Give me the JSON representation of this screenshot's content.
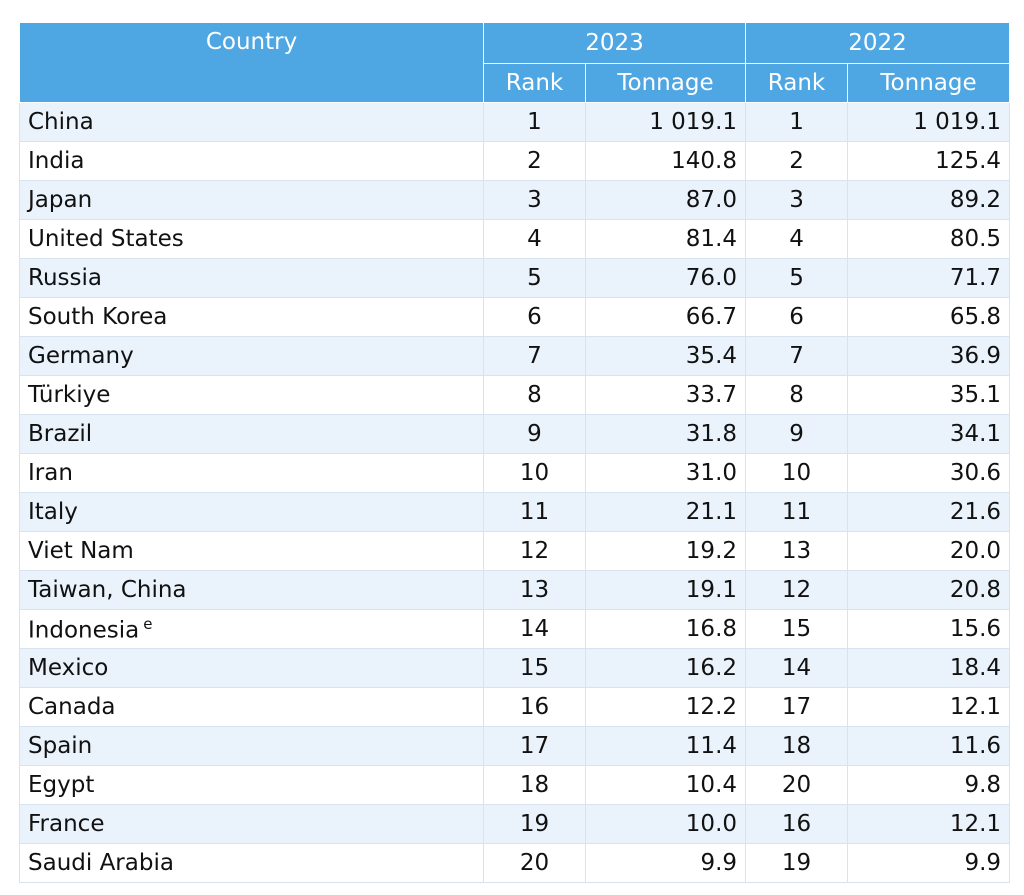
{
  "header": {
    "country": "Country",
    "year_a": "2023",
    "year_b": "2022",
    "rank": "Rank",
    "tonnage": "Tonnage"
  },
  "rows": [
    {
      "country": "China",
      "note": "",
      "rank_2023": "1",
      "ton_2023": "1 019.1",
      "rank_2022": "1",
      "ton_2022": "1 019.1"
    },
    {
      "country": "India",
      "note": "",
      "rank_2023": "2",
      "ton_2023": "140.8",
      "rank_2022": "2",
      "ton_2022": "125.4"
    },
    {
      "country": "Japan",
      "note": "",
      "rank_2023": "3",
      "ton_2023": "87.0",
      "rank_2022": "3",
      "ton_2022": "89.2"
    },
    {
      "country": "United States",
      "note": "",
      "rank_2023": "4",
      "ton_2023": "81.4",
      "rank_2022": "4",
      "ton_2022": "80.5"
    },
    {
      "country": "Russia",
      "note": "",
      "rank_2023": "5",
      "ton_2023": "76.0",
      "rank_2022": "5",
      "ton_2022": "71.7"
    },
    {
      "country": "South Korea",
      "note": "",
      "rank_2023": "6",
      "ton_2023": "66.7",
      "rank_2022": "6",
      "ton_2022": "65.8"
    },
    {
      "country": "Germany",
      "note": "",
      "rank_2023": "7",
      "ton_2023": "35.4",
      "rank_2022": "7",
      "ton_2022": "36.9"
    },
    {
      "country": "Türkiye",
      "note": "",
      "rank_2023": "8",
      "ton_2023": "33.7",
      "rank_2022": "8",
      "ton_2022": "35.1"
    },
    {
      "country": "Brazil",
      "note": "",
      "rank_2023": "9",
      "ton_2023": "31.8",
      "rank_2022": "9",
      "ton_2022": "34.1"
    },
    {
      "country": "Iran",
      "note": "",
      "rank_2023": "10",
      "ton_2023": "31.0",
      "rank_2022": "10",
      "ton_2022": "30.6"
    },
    {
      "country": "Italy",
      "note": "",
      "rank_2023": "11",
      "ton_2023": "21.1",
      "rank_2022": "11",
      "ton_2022": "21.6"
    },
    {
      "country": "Viet Nam",
      "note": "",
      "rank_2023": "12",
      "ton_2023": "19.2",
      "rank_2022": "13",
      "ton_2022": "20.0"
    },
    {
      "country": "Taiwan, China",
      "note": "",
      "rank_2023": "13",
      "ton_2023": "19.1",
      "rank_2022": "12",
      "ton_2022": "20.8"
    },
    {
      "country": "Indonesia",
      "note": "e",
      "rank_2023": "14",
      "ton_2023": "16.8",
      "rank_2022": "15",
      "ton_2022": "15.6"
    },
    {
      "country": "Mexico",
      "note": "",
      "rank_2023": "15",
      "ton_2023": "16.2",
      "rank_2022": "14",
      "ton_2022": "18.4"
    },
    {
      "country": "Canada",
      "note": "",
      "rank_2023": "16",
      "ton_2023": "12.2",
      "rank_2022": "17",
      "ton_2022": "12.1"
    },
    {
      "country": "Spain",
      "note": "",
      "rank_2023": "17",
      "ton_2023": "11.4",
      "rank_2022": "18",
      "ton_2022": "11.6"
    },
    {
      "country": "Egypt",
      "note": "",
      "rank_2023": "18",
      "ton_2023": "10.4",
      "rank_2022": "20",
      "ton_2022": "9.8"
    },
    {
      "country": "France",
      "note": "",
      "rank_2023": "19",
      "ton_2023": "10.0",
      "rank_2022": "16",
      "ton_2022": "12.1"
    },
    {
      "country": "Saudi Arabia",
      "note": "",
      "rank_2023": "20",
      "ton_2023": "9.9",
      "rank_2022": "19",
      "ton_2022": "9.9"
    }
  ],
  "colors": {
    "header_bg": "#4ea6e3",
    "row_odd": "#eaf3fc",
    "row_even": "#ffffff"
  }
}
